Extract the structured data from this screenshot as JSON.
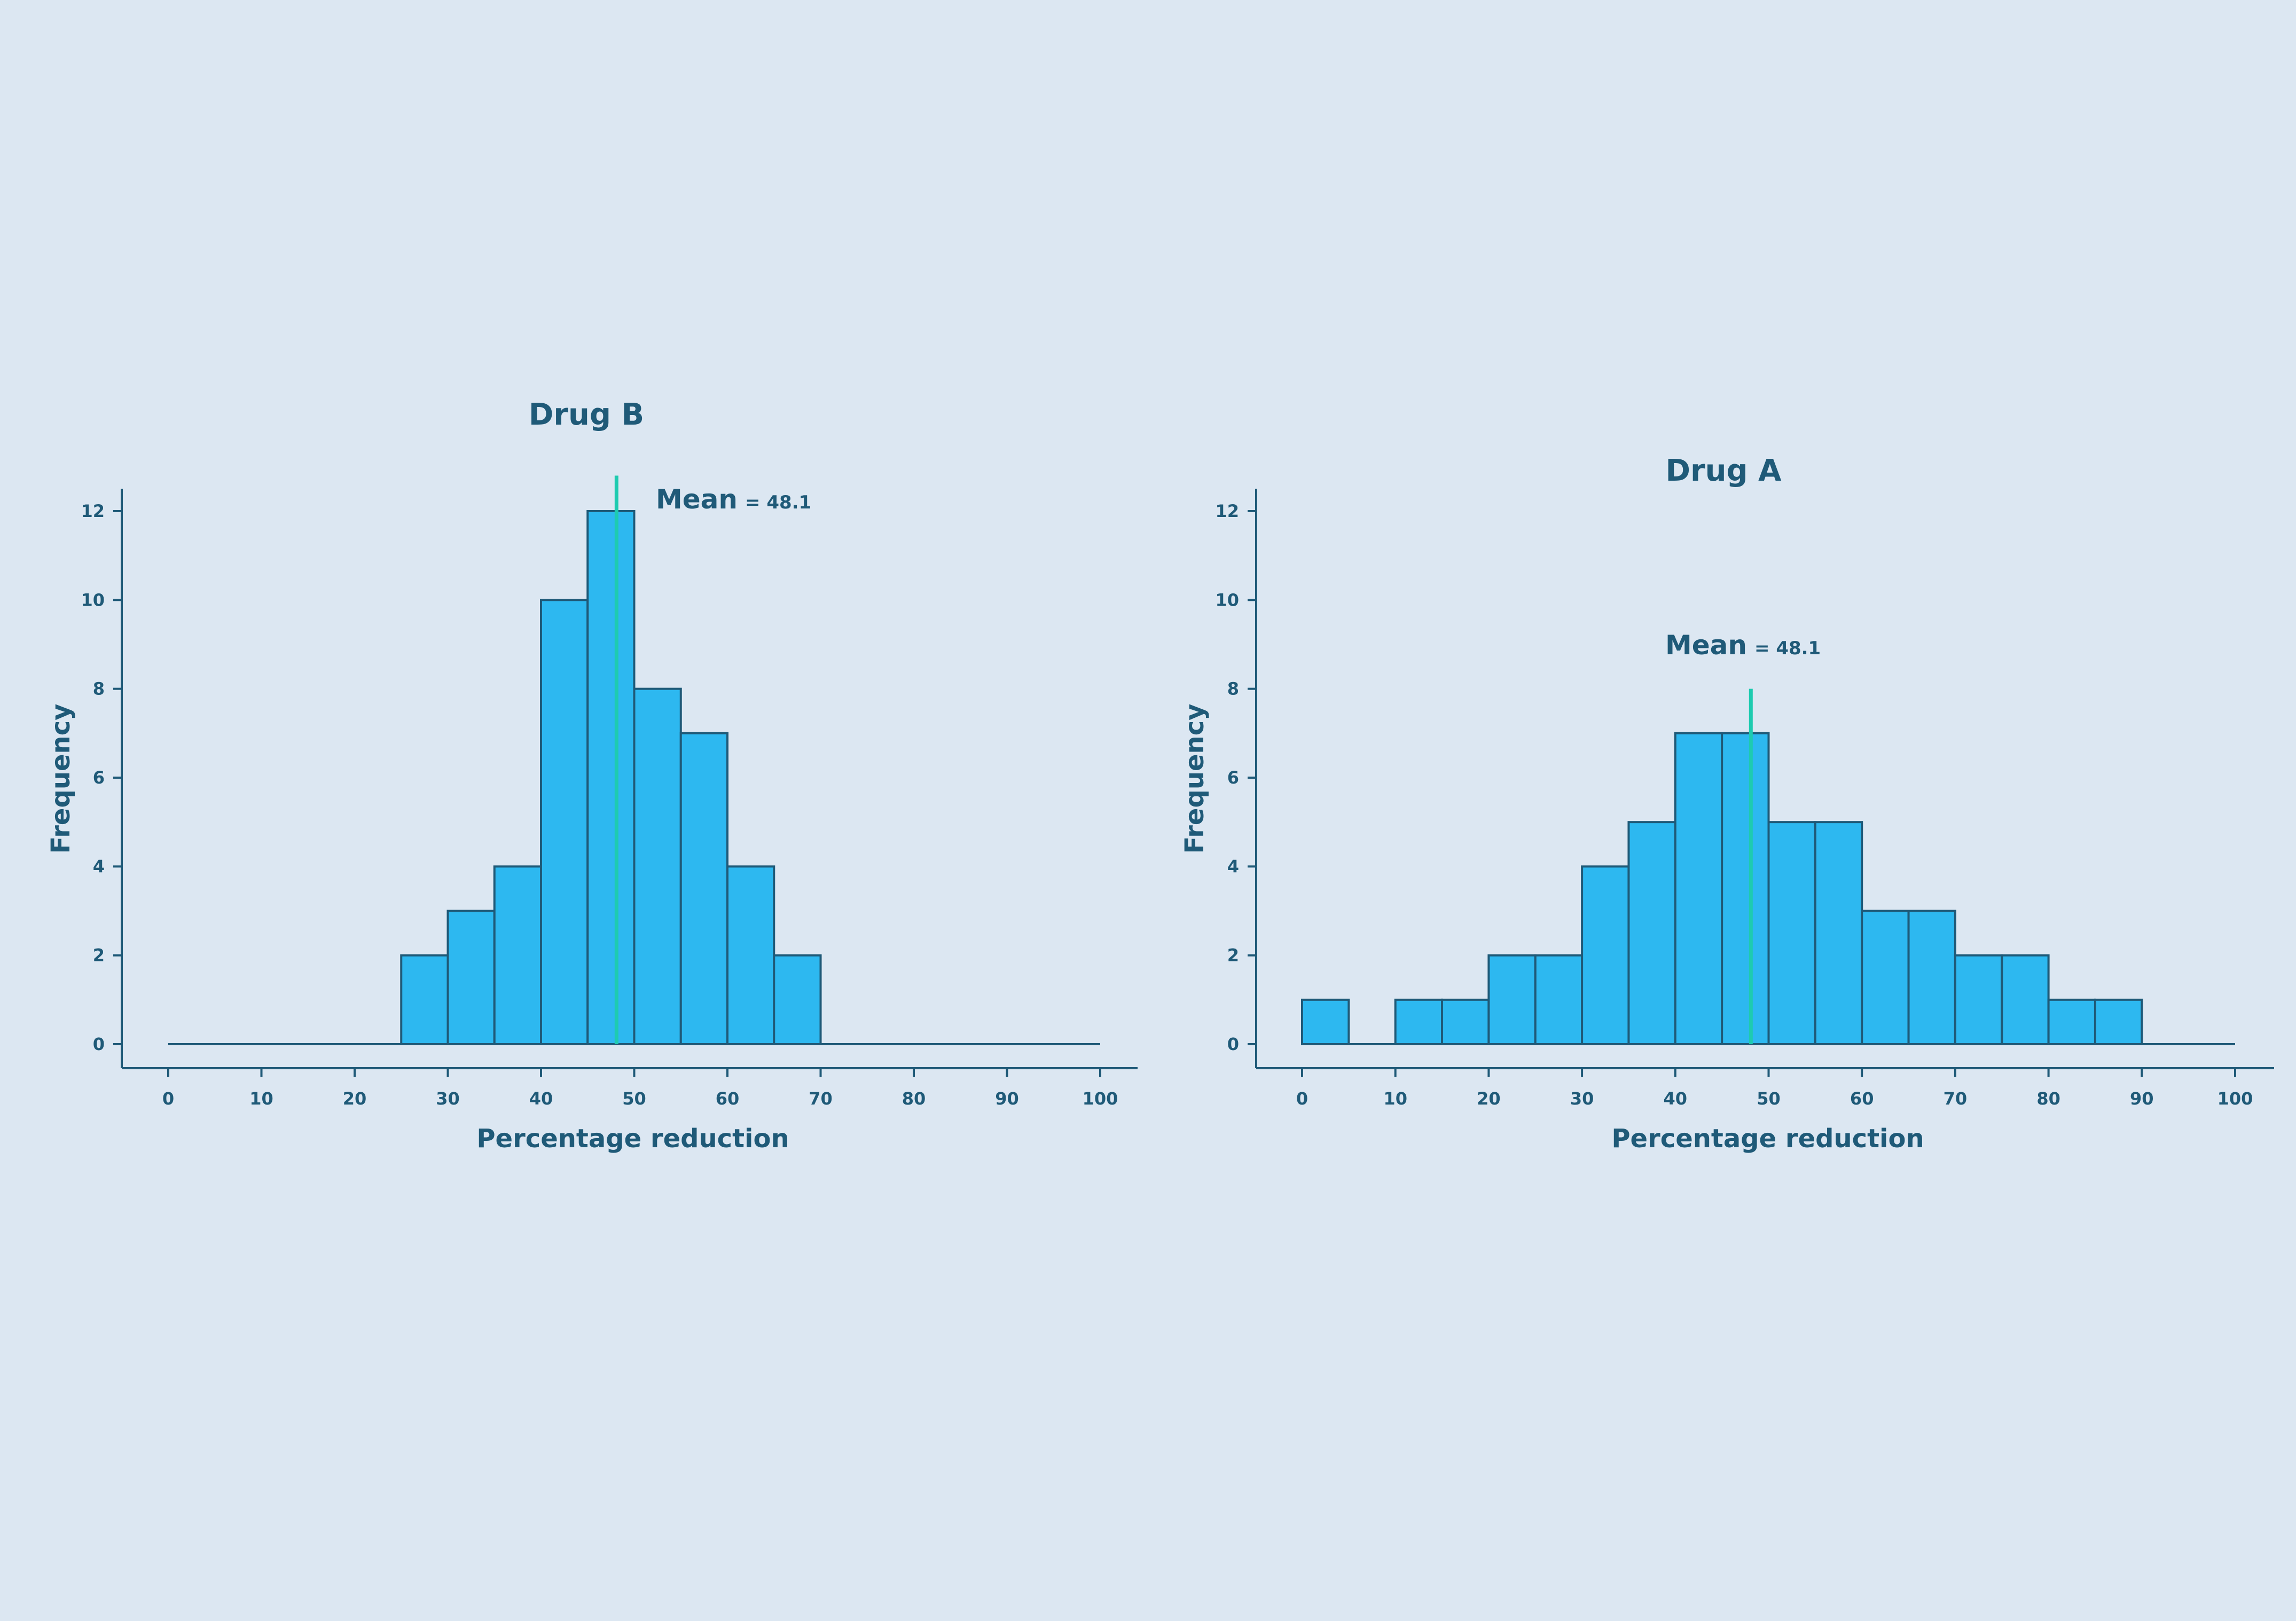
{
  "colors": {
    "background": "#dce7f2",
    "bar_fill": "#2db8f0",
    "bar_stroke": "#1f5a78",
    "axis": "#1f5a78",
    "text": "#1f5a78",
    "mean_line": "#1ecbb0"
  },
  "chart_data": [
    {
      "type": "bar",
      "title": "Drug B",
      "xlabel": "Percentage reduction",
      "ylabel": "Frequency",
      "xlim": [
        0,
        100
      ],
      "ylim": [
        0,
        12
      ],
      "bin_width": 5,
      "xticks": [
        0,
        10,
        20,
        30,
        40,
        50,
        60,
        70,
        80,
        90,
        100
      ],
      "yticks": [
        0,
        2,
        4,
        6,
        8,
        10,
        12
      ],
      "bin_starts": [
        0,
        5,
        10,
        15,
        20,
        25,
        30,
        35,
        40,
        45,
        50,
        55,
        60,
        65,
        70,
        75,
        80,
        85,
        90,
        95
      ],
      "values": [
        0,
        0,
        0,
        0,
        0,
        2,
        3,
        4,
        10,
        12,
        8,
        7,
        4,
        2,
        0,
        0,
        0,
        0,
        0,
        0
      ],
      "mean": 48.1,
      "mean_label": "Mean",
      "mean_value_label": "= 48.1",
      "mean_line_top": 12.8,
      "mean_label_position": "top-right of peak"
    },
    {
      "type": "bar",
      "title": "Drug A",
      "xlabel": "Percentage reduction",
      "ylabel": "Frequency",
      "xlim": [
        0,
        100
      ],
      "ylim": [
        0,
        12
      ],
      "bin_width": 5,
      "xticks": [
        0,
        10,
        20,
        30,
        40,
        50,
        60,
        70,
        80,
        90,
        100
      ],
      "yticks": [
        0,
        2,
        4,
        6,
        8,
        10,
        12
      ],
      "bin_starts": [
        0,
        5,
        10,
        15,
        20,
        25,
        30,
        35,
        40,
        45,
        50,
        55,
        60,
        65,
        70,
        75,
        80,
        85
      ],
      "values": [
        1,
        0,
        1,
        1,
        2,
        2,
        4,
        5,
        7,
        7,
        5,
        5,
        3,
        3,
        2,
        2,
        1,
        1
      ],
      "mean": 48.1,
      "mean_label": "Mean",
      "mean_value_label": "= 48.1",
      "mean_line_top": 8,
      "mean_label_position": "above peak"
    }
  ]
}
